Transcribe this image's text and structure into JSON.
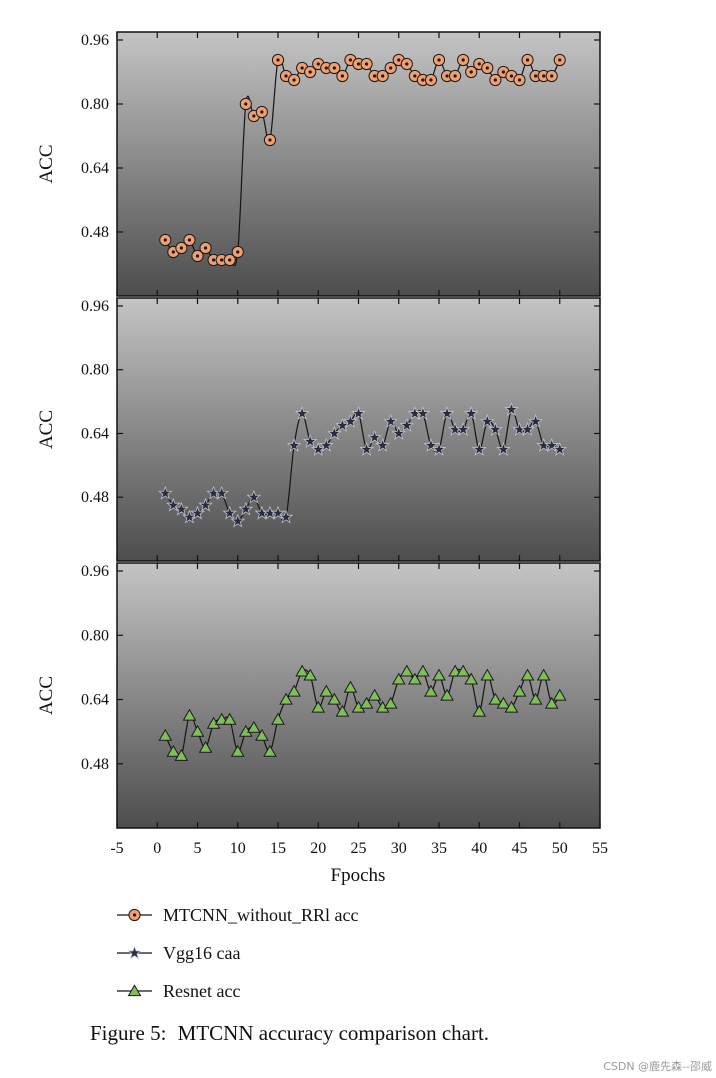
{
  "chart_data": {
    "type": "line",
    "panel_ylabels": [
      "ACC",
      "ACC",
      "ACC"
    ],
    "xlabel": "Fpochs",
    "xlim": [
      -5,
      55
    ],
    "x_ticks": [
      -5,
      0,
      5,
      10,
      15,
      20,
      25,
      30,
      35,
      40,
      45,
      50,
      55
    ],
    "ylim": [
      0.32,
      0.98
    ],
    "y_ticks": [
      0.48,
      0.64,
      0.8,
      0.96
    ],
    "y_tick_labels": [
      "0.48",
      "0.64",
      "0.80",
      "0.96"
    ],
    "x": [
      1,
      2,
      3,
      4,
      5,
      6,
      7,
      8,
      9,
      10,
      11,
      12,
      13,
      14,
      15,
      16,
      17,
      18,
      19,
      20,
      21,
      22,
      23,
      24,
      25,
      26,
      27,
      28,
      29,
      30,
      31,
      32,
      33,
      34,
      35,
      36,
      37,
      38,
      39,
      40,
      41,
      42,
      43,
      44,
      45,
      46,
      47,
      48,
      49,
      50
    ],
    "series": [
      {
        "name": "MTCNN_without_RRl acc",
        "marker": "circle",
        "color": "#f0a070",
        "values": [
          0.46,
          0.43,
          0.44,
          0.46,
          0.42,
          0.44,
          0.41,
          0.41,
          0.41,
          0.43,
          0.8,
          0.77,
          0.78,
          0.71,
          0.91,
          0.87,
          0.86,
          0.89,
          0.88,
          0.9,
          0.89,
          0.89,
          0.87,
          0.91,
          0.9,
          0.9,
          0.87,
          0.87,
          0.89,
          0.91,
          0.9,
          0.87,
          0.86,
          0.86,
          0.91,
          0.87,
          0.87,
          0.91,
          0.88,
          0.9,
          0.89,
          0.86,
          0.88,
          0.87,
          0.86,
          0.91,
          0.87,
          0.87,
          0.87,
          0.91
        ]
      },
      {
        "name": "Vgg16 caa",
        "marker": "star",
        "color": "#2a2c3e",
        "values": [
          0.49,
          0.46,
          0.45,
          0.43,
          0.44,
          0.46,
          0.49,
          0.49,
          0.44,
          0.42,
          0.45,
          0.48,
          0.44,
          0.44,
          0.44,
          0.43,
          0.61,
          0.69,
          0.62,
          0.6,
          0.61,
          0.64,
          0.66,
          0.67,
          0.69,
          0.6,
          0.63,
          0.61,
          0.67,
          0.64,
          0.66,
          0.69,
          0.69,
          0.61,
          0.6,
          0.69,
          0.65,
          0.65,
          0.69,
          0.6,
          0.67,
          0.65,
          0.6,
          0.7,
          0.65,
          0.65,
          0.67,
          0.61,
          0.61,
          0.6
        ]
      },
      {
        "name": "Resnet acc",
        "marker": "triangle",
        "color": "#7fbf5a",
        "values": [
          0.55,
          0.51,
          0.5,
          0.6,
          0.56,
          0.52,
          0.58,
          0.59,
          0.59,
          0.51,
          0.56,
          0.57,
          0.55,
          0.51,
          0.59,
          0.64,
          0.66,
          0.71,
          0.7,
          0.62,
          0.66,
          0.64,
          0.61,
          0.67,
          0.62,
          0.63,
          0.65,
          0.62,
          0.63,
          0.69,
          0.71,
          0.69,
          0.71,
          0.66,
          0.7,
          0.65,
          0.71,
          0.71,
          0.69,
          0.61,
          0.7,
          0.64,
          0.63,
          0.62,
          0.66,
          0.7,
          0.64,
          0.7,
          0.63,
          0.65
        ]
      }
    ],
    "legend_position": "bottom-left"
  },
  "caption": {
    "label": "Figure 5:",
    "text": "MTCNN accuracy comparison chart."
  },
  "watermark": "CSDN @鹿先森--邵威"
}
